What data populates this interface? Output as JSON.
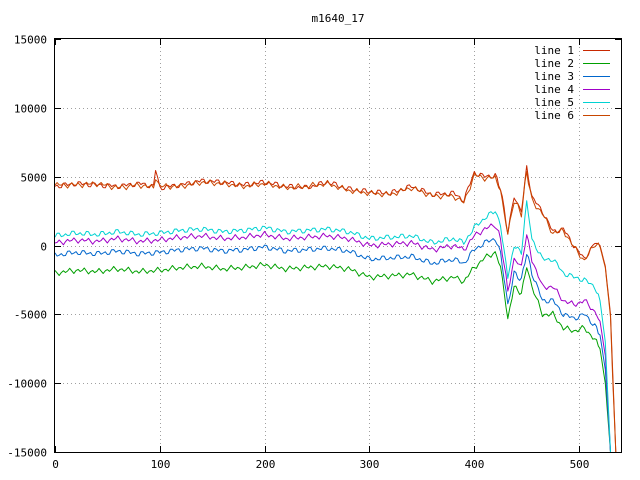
{
  "chart_data": {
    "type": "line",
    "title": "m1640_17",
    "xlabel": "",
    "ylabel": "",
    "xlim": [
      0,
      540
    ],
    "ylim": [
      -15000,
      15000
    ],
    "xticks": [
      0,
      100,
      200,
      300,
      400,
      500
    ],
    "yticks": [
      -15000,
      -10000,
      -5000,
      0,
      5000,
      10000,
      15000
    ],
    "grid": true,
    "legend_position": "top-right",
    "series": [
      {
        "name": "line 1",
        "color": "#c82800",
        "points": [
          [
            0,
            4300
          ],
          [
            20,
            4500
          ],
          [
            40,
            4400
          ],
          [
            60,
            4300
          ],
          [
            80,
            4500
          ],
          [
            94,
            4300
          ],
          [
            96,
            5500
          ],
          [
            100,
            4200
          ],
          [
            120,
            4400
          ],
          [
            140,
            4700
          ],
          [
            160,
            4600
          ],
          [
            180,
            4400
          ],
          [
            200,
            4600
          ],
          [
            220,
            4300
          ],
          [
            240,
            4200
          ],
          [
            260,
            4600
          ],
          [
            280,
            4100
          ],
          [
            300,
            3900
          ],
          [
            320,
            3800
          ],
          [
            340,
            4300
          ],
          [
            360,
            3700
          ],
          [
            380,
            3800
          ],
          [
            390,
            3300
          ],
          [
            400,
            5300
          ],
          [
            410,
            5000
          ],
          [
            420,
            5100
          ],
          [
            425,
            4200
          ],
          [
            432,
            1000
          ],
          [
            438,
            3500
          ],
          [
            445,
            2500
          ],
          [
            450,
            5700
          ],
          [
            455,
            3500
          ],
          [
            465,
            2500
          ],
          [
            475,
            1000
          ],
          [
            485,
            1200
          ],
          [
            495,
            0
          ],
          [
            505,
            -1000
          ],
          [
            515,
            200
          ],
          [
            520,
            0
          ],
          [
            525,
            -1500
          ],
          [
            530,
            -5000
          ],
          [
            532,
            -9000
          ],
          [
            535,
            -15000
          ]
        ]
      },
      {
        "name": "line 2",
        "color": "#00a000",
        "points": [
          [
            0,
            -2000
          ],
          [
            20,
            -1800
          ],
          [
            40,
            -1900
          ],
          [
            60,
            -1700
          ],
          [
            80,
            -1900
          ],
          [
            100,
            -1800
          ],
          [
            120,
            -1600
          ],
          [
            140,
            -1500
          ],
          [
            160,
            -1700
          ],
          [
            180,
            -1600
          ],
          [
            200,
            -1400
          ],
          [
            220,
            -1700
          ],
          [
            240,
            -1600
          ],
          [
            260,
            -1500
          ],
          [
            280,
            -1700
          ],
          [
            300,
            -2300
          ],
          [
            320,
            -2200
          ],
          [
            340,
            -2100
          ],
          [
            360,
            -2600
          ],
          [
            380,
            -2300
          ],
          [
            390,
            -2600
          ],
          [
            400,
            -1600
          ],
          [
            410,
            -900
          ],
          [
            420,
            -500
          ],
          [
            425,
            -1500
          ],
          [
            432,
            -5300
          ],
          [
            438,
            -3000
          ],
          [
            445,
            -3500
          ],
          [
            450,
            -1500
          ],
          [
            455,
            -3000
          ],
          [
            465,
            -5000
          ],
          [
            475,
            -5000
          ],
          [
            485,
            -6000
          ],
          [
            495,
            -6200
          ],
          [
            505,
            -6000
          ],
          [
            515,
            -6800
          ],
          [
            520,
            -7500
          ],
          [
            525,
            -10000
          ],
          [
            530,
            -15000
          ]
        ]
      },
      {
        "name": "line 3",
        "color": "#0066cc",
        "points": [
          [
            0,
            -700
          ],
          [
            20,
            -500
          ],
          [
            40,
            -600
          ],
          [
            60,
            -400
          ],
          [
            80,
            -600
          ],
          [
            100,
            -500
          ],
          [
            120,
            -300
          ],
          [
            140,
            -200
          ],
          [
            160,
            -400
          ],
          [
            180,
            -300
          ],
          [
            200,
            -100
          ],
          [
            220,
            -400
          ],
          [
            240,
            -300
          ],
          [
            260,
            -200
          ],
          [
            280,
            -400
          ],
          [
            300,
            -1000
          ],
          [
            320,
            -900
          ],
          [
            340,
            -800
          ],
          [
            360,
            -1300
          ],
          [
            380,
            -1000
          ],
          [
            390,
            -1300
          ],
          [
            400,
            -300
          ],
          [
            410,
            200
          ],
          [
            420,
            500
          ],
          [
            425,
            -500
          ],
          [
            432,
            -4300
          ],
          [
            438,
            -2000
          ],
          [
            445,
            -2500
          ],
          [
            450,
            -500
          ],
          [
            455,
            -2000
          ],
          [
            465,
            -4000
          ],
          [
            475,
            -4000
          ],
          [
            485,
            -5000
          ],
          [
            495,
            -5300
          ],
          [
            505,
            -5000
          ],
          [
            515,
            -5800
          ],
          [
            520,
            -6500
          ],
          [
            525,
            -9000
          ],
          [
            530,
            -15000
          ]
        ]
      },
      {
        "name": "line 4",
        "color": "#a000c8",
        "points": [
          [
            0,
            200
          ],
          [
            20,
            400
          ],
          [
            40,
            300
          ],
          [
            60,
            500
          ],
          [
            80,
            300
          ],
          [
            100,
            400
          ],
          [
            120,
            600
          ],
          [
            140,
            700
          ],
          [
            160,
            500
          ],
          [
            180,
            600
          ],
          [
            200,
            800
          ],
          [
            220,
            500
          ],
          [
            240,
            600
          ],
          [
            260,
            700
          ],
          [
            280,
            500
          ],
          [
            300,
            0
          ],
          [
            320,
            100
          ],
          [
            340,
            200
          ],
          [
            360,
            -300
          ],
          [
            380,
            0
          ],
          [
            390,
            -300
          ],
          [
            400,
            700
          ],
          [
            410,
            1200
          ],
          [
            420,
            1500
          ],
          [
            425,
            500
          ],
          [
            432,
            -3300
          ],
          [
            438,
            -1000
          ],
          [
            445,
            -1500
          ],
          [
            450,
            800
          ],
          [
            455,
            -1000
          ],
          [
            465,
            -3000
          ],
          [
            475,
            -3000
          ],
          [
            485,
            -4000
          ],
          [
            495,
            -4300
          ],
          [
            505,
            -4000
          ],
          [
            515,
            -4800
          ],
          [
            520,
            -5500
          ],
          [
            525,
            -8000
          ],
          [
            530,
            -15000
          ]
        ]
      },
      {
        "name": "line 5",
        "color": "#00d2d2",
        "points": [
          [
            0,
            700
          ],
          [
            20,
            900
          ],
          [
            40,
            800
          ],
          [
            60,
            1000
          ],
          [
            80,
            800
          ],
          [
            100,
            900
          ],
          [
            120,
            1100
          ],
          [
            140,
            1200
          ],
          [
            160,
            1000
          ],
          [
            180,
            1100
          ],
          [
            200,
            1300
          ],
          [
            220,
            1000
          ],
          [
            240,
            1100
          ],
          [
            260,
            1200
          ],
          [
            280,
            1000
          ],
          [
            300,
            500
          ],
          [
            320,
            600
          ],
          [
            340,
            700
          ],
          [
            360,
            200
          ],
          [
            380,
            500
          ],
          [
            390,
            200
          ],
          [
            400,
            1300
          ],
          [
            410,
            2000
          ],
          [
            420,
            2500
          ],
          [
            425,
            1500
          ],
          [
            432,
            -2300
          ],
          [
            438,
            0
          ],
          [
            445,
            -500
          ],
          [
            450,
            3200
          ],
          [
            455,
            500
          ],
          [
            465,
            -1000
          ],
          [
            475,
            -1000
          ],
          [
            485,
            -2000
          ],
          [
            495,
            -2300
          ],
          [
            505,
            -2500
          ],
          [
            515,
            -3000
          ],
          [
            520,
            -4000
          ],
          [
            525,
            -7000
          ],
          [
            530,
            -15000
          ]
        ]
      },
      {
        "name": "line 6",
        "color": "#c84600",
        "points": [
          [
            0,
            4400
          ],
          [
            20,
            4400
          ],
          [
            40,
            4500
          ],
          [
            60,
            4200
          ],
          [
            80,
            4400
          ],
          [
            94,
            4200
          ],
          [
            96,
            5000
          ],
          [
            100,
            4300
          ],
          [
            120,
            4300
          ],
          [
            140,
            4600
          ],
          [
            160,
            4500
          ],
          [
            180,
            4300
          ],
          [
            200,
            4500
          ],
          [
            220,
            4200
          ],
          [
            240,
            4300
          ],
          [
            260,
            4500
          ],
          [
            280,
            4000
          ],
          [
            300,
            3800
          ],
          [
            320,
            3700
          ],
          [
            340,
            4200
          ],
          [
            360,
            3600
          ],
          [
            380,
            3600
          ],
          [
            390,
            3100
          ],
          [
            400,
            5100
          ],
          [
            410,
            4900
          ],
          [
            420,
            4900
          ],
          [
            425,
            4000
          ],
          [
            432,
            800
          ],
          [
            438,
            3300
          ],
          [
            445,
            2300
          ],
          [
            450,
            5400
          ],
          [
            455,
            3300
          ],
          [
            465,
            2300
          ],
          [
            475,
            900
          ],
          [
            485,
            1100
          ],
          [
            495,
            -100
          ],
          [
            505,
            -1100
          ],
          [
            515,
            100
          ],
          [
            520,
            -100
          ],
          [
            525,
            -1600
          ],
          [
            530,
            -5200
          ],
          [
            532,
            -9500
          ],
          [
            535,
            -15000
          ]
        ]
      }
    ]
  }
}
